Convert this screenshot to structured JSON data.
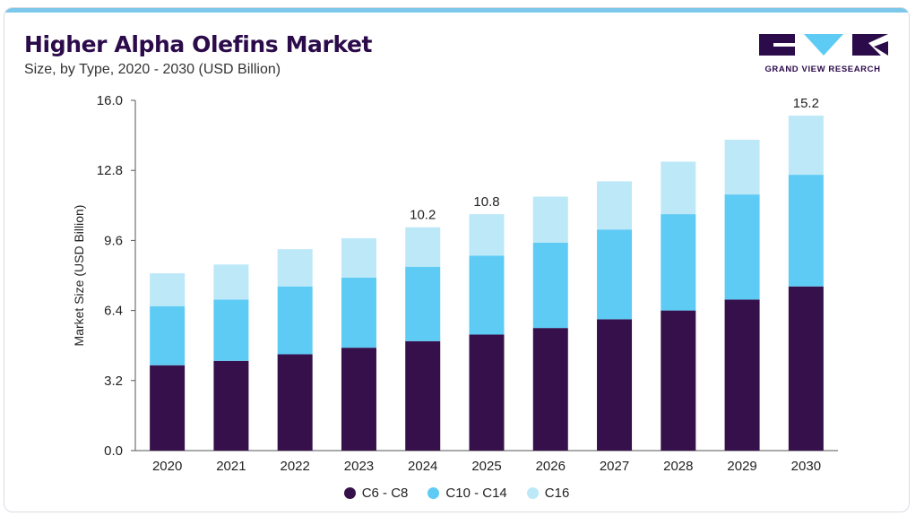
{
  "header": {
    "title": "Higher Alpha Olefins Market",
    "subtitle": "Size, by Type, 2020 - 2030 (USD Billion)"
  },
  "logo": {
    "text": "GRAND VIEW RESEARCH"
  },
  "colors": {
    "c6_c8": "#36104a",
    "c10_c14": "#5ecbf5",
    "c16": "#bce8f8",
    "brand": "#2c0b4b",
    "accent": "#7cc8ea"
  },
  "chart_data": {
    "type": "bar",
    "stacked": true,
    "categories": [
      "2020",
      "2021",
      "2022",
      "2023",
      "2024",
      "2025",
      "2026",
      "2027",
      "2028",
      "2029",
      "2030"
    ],
    "series": [
      {
        "name": "C6 - C8",
        "values": [
          3.9,
          4.1,
          4.4,
          4.7,
          5.0,
          5.3,
          5.6,
          6.0,
          6.4,
          6.9,
          7.5
        ]
      },
      {
        "name": "C10 - C14",
        "values": [
          2.7,
          2.8,
          3.1,
          3.2,
          3.4,
          3.6,
          3.9,
          4.1,
          4.4,
          4.8,
          5.1
        ]
      },
      {
        "name": "C16",
        "values": [
          1.5,
          1.6,
          1.7,
          1.8,
          1.8,
          1.9,
          2.1,
          2.2,
          2.4,
          2.5,
          2.7
        ]
      }
    ],
    "total_labels": {
      "2024": "10.2",
      "2025": "10.8",
      "2030": "15.2"
    },
    "ylabel": "Market Size (USD Billion)",
    "xlabel": "",
    "ylim": [
      0,
      16
    ],
    "yticks": [
      "0.0",
      "3.2",
      "6.4",
      "9.6",
      "12.8",
      "16.0"
    ],
    "grid": false,
    "legend_position": "bottom"
  }
}
